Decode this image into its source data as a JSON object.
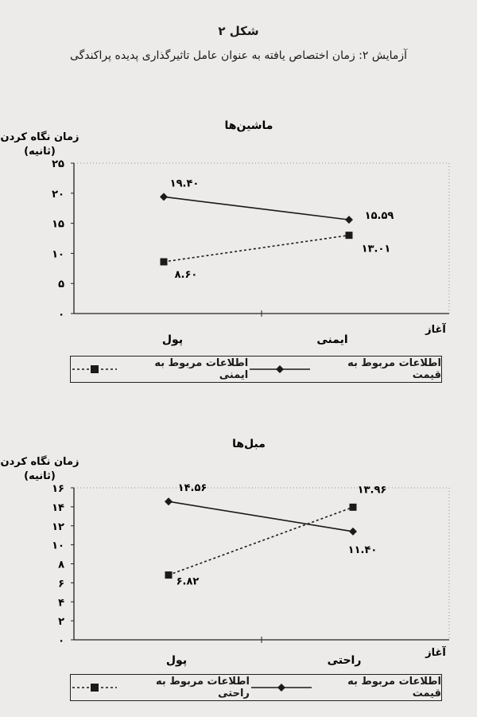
{
  "figure": {
    "title": "شکل ۲",
    "subtitle": "آزمایش ۲: زمان اختصاص یافته به عنوان عامل تاثیرگذاری پدیده پراکندگی"
  },
  "chart_data": [
    {
      "type": "line",
      "title": "ماشین‌ها",
      "ylabel": "زمان نگاه کردن (ثانیه)",
      "xlabel": "آغاز",
      "categories": [
        "پول",
        "ایمنی"
      ],
      "ylim": [
        0,
        25
      ],
      "yticks": [
        0,
        5,
        10,
        15,
        20,
        25
      ],
      "ytick_labels": [
        "۰",
        "۵",
        "۱۰",
        "۱۵",
        "۲۰",
        "۲۵"
      ],
      "series": [
        {
          "name": "اطلاعات مربوط به قیمت",
          "values": [
            19.4,
            15.59
          ],
          "labels": [
            "۱۹.۴۰",
            "۱۵.۵۹"
          ],
          "style": "solid",
          "marker": "diamond",
          "color": "#1a1a1a"
        },
        {
          "name": "اطلاعات مربوط به ایمنی",
          "values": [
            8.6,
            13.01
          ],
          "labels": [
            "۸.۶۰",
            "۱۳.۰۱"
          ],
          "style": "dotted",
          "marker": "square",
          "color": "#1a1a1a"
        }
      ],
      "grid": false,
      "legend": "bottom"
    },
    {
      "type": "line",
      "title": "مبل‌ها",
      "ylabel": "زمان نگاه کردن (ثانیه)",
      "xlabel": "آغاز",
      "categories": [
        "پول",
        "راحتی"
      ],
      "ylim": [
        0,
        16
      ],
      "yticks": [
        0,
        2,
        4,
        6,
        8,
        10,
        12,
        14,
        16
      ],
      "ytick_labels": [
        "۰",
        "۲",
        "۴",
        "۶",
        "۸",
        "۱۰",
        "۱۲",
        "۱۴",
        "۱۶"
      ],
      "series": [
        {
          "name": "اطلاعات مربوط به قیمت",
          "values": [
            14.56,
            11.4
          ],
          "labels": [
            "۱۴.۵۶",
            "۱۱.۴۰"
          ],
          "style": "solid",
          "marker": "diamond",
          "color": "#1a1a1a"
        },
        {
          "name": "اطلاعات مربوط به راحتی",
          "values": [
            6.82,
            13.96
          ],
          "labels": [
            "۶.۸۲",
            "۱۳.۹۶"
          ],
          "style": "dotted",
          "marker": "square",
          "color": "#1a1a1a"
        }
      ],
      "grid": false,
      "legend": "bottom"
    }
  ]
}
